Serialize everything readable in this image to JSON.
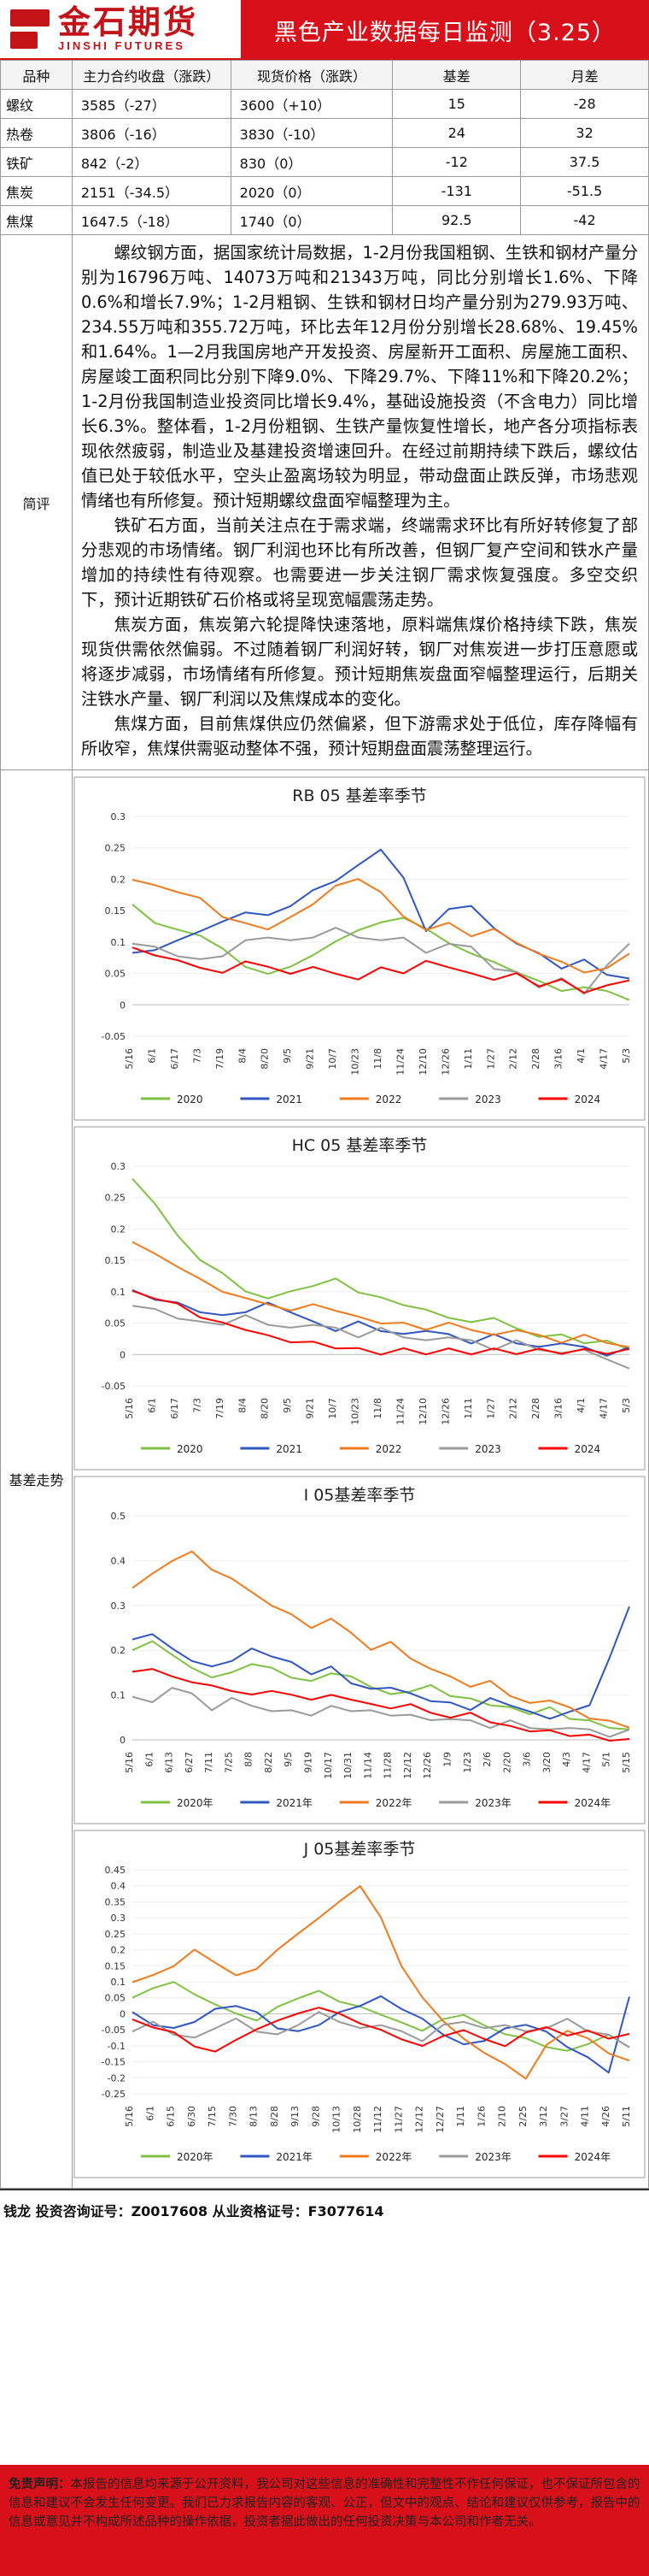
{
  "header": {
    "logo_cn": "金石期货",
    "logo_en": "JINSHI FUTURES",
    "title": "黑色产业数据每日监测（3.25）"
  },
  "price_table": {
    "headers": [
      "品种",
      "主力合约收盘（涨跌）",
      "现货价格（涨跌）",
      "基差",
      "月差"
    ],
    "rows": [
      {
        "name": "螺纹",
        "close": "3585（-27）",
        "spot": "3600（+10）",
        "basis": "15",
        "spread": "-28"
      },
      {
        "name": "热卷",
        "close": "3806（-16）",
        "spot": "3830（-10）",
        "basis": "24",
        "spread": "32"
      },
      {
        "name": "铁矿",
        "close": "842（-2）",
        "spot": "830（0）",
        "basis": "-12",
        "spread": "37.5"
      },
      {
        "name": "焦炭",
        "close": "2151（-34.5）",
        "spot": "2020（0）",
        "basis": "-131",
        "spread": "-51.5"
      },
      {
        "name": "焦煤",
        "close": "1647.5（-18）",
        "spot": "1740（0）",
        "basis": "92.5",
        "spread": "-42"
      }
    ]
  },
  "commentary": {
    "label": "简评",
    "paragraphs": [
      "螺纹钢方面，据国家统计局数据，1-2月份我国粗钢、生铁和钢材产量分别为16796万吨、14073万吨和21343万吨，同比分别增长1.6%、下降0.6%和增长7.9%；1-2月粗钢、生铁和钢材日均产量分别为279.93万吨、234.55万吨和355.72万吨，环比去年12月份分别增长28.68%、19.45%和1.64%。1—2月我国房地产开发投资、房屋新开工面积、房屋施工面积、房屋竣工面积同比分别下降9.0%、下降29.7%、下降11%和下降20.2%；1-2月份我国制造业投资同比增长9.4%，基础设施投资（不含电力）同比增长6.3%。整体看，1-2月份粗钢、生铁产量恢复性增长，地产各分项指标表现依然疲弱，制造业及基建投资增速回升。在经过前期持续下跌后，螺纹估值已处于较低水平，空头止盈离场较为明显，带动盘面止跌反弹，市场悲观情绪也有所修复。预计短期螺纹盘面窄幅整理为主。",
      "铁矿石方面，当前关注点在于需求端，终端需求环比有所好转修复了部分悲观的市场情绪。钢厂利润也环比有所改善，但钢厂复产空间和铁水产量增加的持续性有待观察。也需要进一步关注钢厂需求恢复强度。多空交织下，预计近期铁矿石价格或将呈现宽幅震荡走势。",
      "焦炭方面，焦炭第六轮提降快速落地，原料端焦煤价格持续下跌，焦炭现货供需依然偏弱。不过随着钢厂利润好转，钢厂对焦炭进一步打压意愿或将逐步减弱，市场情绪有所修复。预计短期焦炭盘面窄幅整理运行，后期关注铁水产量、钢厂利润以及焦煤成本的变化。",
      "焦煤方面，目前焦煤供应仍然偏紧，但下游需求处于低位，库存降幅有所收窄，焦煤供需驱动整体不强，预计短期盘面震荡整理运行。"
    ]
  },
  "basis_section_label": "基差走势",
  "legend_colors": {
    "2020": "#7fc241",
    "2021": "#2f56c2",
    "2022": "#f07a1c",
    "2023": "#9a9a9a",
    "2024": "#ff0000"
  },
  "chart_data": [
    {
      "type": "line",
      "title": "RB 05 基差率季节",
      "ylim": [
        -0.05,
        0.3
      ],
      "yticks": [
        "0.3",
        "0.25",
        "0.2",
        "0.15",
        "0.1",
        "0.05",
        "0",
        "-0.05"
      ],
      "xticks": [
        "5/16",
        "6/1",
        "6/17",
        "7/3",
        "7/19",
        "8/4",
        "8/20",
        "9/5",
        "9/21",
        "10/7",
        "10/23",
        "11/8",
        "11/24",
        "12/10",
        "12/26",
        "1/11",
        "1/27",
        "2/12",
        "2/28",
        "3/16",
        "4/1",
        "4/17",
        "5/3"
      ],
      "series": [
        {
          "name": "2020",
          "values": [
            0.16,
            0.13,
            0.12,
            0.11,
            0.09,
            0.06,
            0.05,
            0.06,
            0.08,
            0.1,
            0.12,
            0.13,
            0.14,
            0.12,
            0.1,
            0.08,
            0.07,
            0.05,
            0.04,
            0.02,
            0.03,
            0.02,
            0.01
          ]
        },
        {
          "name": "2021",
          "values": [
            0.08,
            0.09,
            0.1,
            0.12,
            0.13,
            0.15,
            0.14,
            0.16,
            0.18,
            0.2,
            0.22,
            0.25,
            0.2,
            0.12,
            0.15,
            0.16,
            0.12,
            0.1,
            0.08,
            0.06,
            0.07,
            0.05,
            0.04
          ]
        },
        {
          "name": "2022",
          "values": [
            0.2,
            0.19,
            0.18,
            0.17,
            0.14,
            0.13,
            0.12,
            0.14,
            0.16,
            0.19,
            0.2,
            0.18,
            0.14,
            0.12,
            0.13,
            0.11,
            0.12,
            0.1,
            0.08,
            0.07,
            0.05,
            0.06,
            0.08
          ]
        },
        {
          "name": "2023",
          "values": [
            0.1,
            0.09,
            0.08,
            0.07,
            0.08,
            0.1,
            0.11,
            0.1,
            0.11,
            0.12,
            0.11,
            0.1,
            0.11,
            0.08,
            0.1,
            0.09,
            0.06,
            0.05,
            0.03,
            0.04,
            0.02,
            0.06,
            0.1
          ]
        },
        {
          "name": "2024",
          "values": [
            0.09,
            0.08,
            0.07,
            0.06,
            0.05,
            0.07,
            0.06,
            0.05,
            0.06,
            0.05,
            0.04,
            0.06,
            0.05,
            0.07,
            0.06,
            0.05,
            0.04,
            0.05,
            0.03,
            0.04,
            0.02,
            0.03,
            0.04
          ]
        }
      ]
    },
    {
      "type": "line",
      "title": "HC 05 基差率季节",
      "ylim": [
        -0.05,
        0.3
      ],
      "yticks": [
        "0.3",
        "0.25",
        "0.2",
        "0.15",
        "0.1",
        "0.05",
        "0",
        "-0.05"
      ],
      "xticks": [
        "5/16",
        "6/1",
        "6/17",
        "7/3",
        "7/19",
        "8/4",
        "8/20",
        "9/5",
        "9/21",
        "10/7",
        "10/23",
        "11/8",
        "11/24",
        "12/10",
        "12/26",
        "1/11",
        "1/27",
        "2/12",
        "2/28",
        "3/16",
        "4/1",
        "4/17",
        "5/3"
      ],
      "series": [
        {
          "name": "2020",
          "values": [
            0.28,
            0.24,
            0.19,
            0.15,
            0.13,
            0.1,
            0.09,
            0.1,
            0.11,
            0.12,
            0.1,
            0.09,
            0.08,
            0.07,
            0.06,
            0.05,
            0.06,
            0.04,
            0.03,
            0.03,
            0.02,
            0.02,
            0.01
          ]
        },
        {
          "name": "2021",
          "values": [
            0.1,
            0.09,
            0.08,
            0.07,
            0.06,
            0.07,
            0.08,
            0.07,
            0.05,
            0.04,
            0.05,
            0.04,
            0.03,
            0.04,
            0.03,
            0.02,
            0.03,
            0.02,
            0.01,
            0.02,
            0.01,
            0.0,
            0.01
          ]
        },
        {
          "name": "2022",
          "values": [
            0.18,
            0.16,
            0.14,
            0.12,
            0.1,
            0.09,
            0.08,
            0.07,
            0.08,
            0.07,
            0.06,
            0.05,
            0.05,
            0.04,
            0.05,
            0.04,
            0.03,
            0.04,
            0.03,
            0.02,
            0.03,
            0.02,
            0.01
          ]
        },
        {
          "name": "2023",
          "values": [
            0.08,
            0.07,
            0.06,
            0.05,
            0.05,
            0.06,
            0.05,
            0.04,
            0.05,
            0.04,
            0.03,
            0.04,
            0.03,
            0.02,
            0.03,
            0.02,
            0.01,
            0.02,
            0.01,
            0.0,
            0.01,
            -0.01,
            -0.02
          ]
        },
        {
          "name": "2024",
          "values": [
            0.1,
            0.09,
            0.08,
            0.06,
            0.05,
            0.04,
            0.03,
            0.02,
            0.02,
            0.01,
            0.01,
            0.0,
            0.01,
            0.0,
            0.01,
            0.0,
            0.01,
            0.0,
            0.01,
            0.0,
            0.01,
            0.0,
            0.01
          ]
        }
      ]
    },
    {
      "type": "line",
      "title": "I 05基差率季节",
      "ylim": [
        0,
        0.5
      ],
      "yticks": [
        "0.5",
        "0.4",
        "0.3",
        "0.2",
        "0.1",
        "0"
      ],
      "xticks": [
        "5/16",
        "6/1",
        "6/13",
        "6/27",
        "7/11",
        "7/25",
        "8/8",
        "8/22",
        "9/5",
        "9/19",
        "10/17",
        "10/31",
        "11/14",
        "11/28",
        "12/12",
        "12/26",
        "1/9",
        "1/23",
        "2/6",
        "2/20",
        "3/6",
        "3/20",
        "4/3",
        "4/17",
        "5/1",
        "5/15"
      ],
      "series": [
        {
          "name": "2020年",
          "values": [
            0.2,
            0.22,
            0.19,
            0.16,
            0.14,
            0.15,
            0.17,
            0.16,
            0.14,
            0.13,
            0.15,
            0.14,
            0.12,
            0.1,
            0.11,
            0.12,
            0.1,
            0.09,
            0.08,
            0.07,
            0.06,
            0.07,
            0.05,
            0.04,
            0.03,
            0.02
          ]
        },
        {
          "name": "2021年",
          "values": [
            0.22,
            0.24,
            0.2,
            0.18,
            0.16,
            0.18,
            0.2,
            0.19,
            0.17,
            0.15,
            0.16,
            0.13,
            0.11,
            0.12,
            0.1,
            0.09,
            0.08,
            0.07,
            0.09,
            0.08,
            0.06,
            0.05,
            0.06,
            0.08,
            0.18,
            0.3
          ]
        },
        {
          "name": "2022年",
          "values": [
            0.34,
            0.37,
            0.4,
            0.42,
            0.38,
            0.36,
            0.33,
            0.3,
            0.28,
            0.25,
            0.27,
            0.24,
            0.2,
            0.22,
            0.18,
            0.16,
            0.14,
            0.12,
            0.13,
            0.1,
            0.08,
            0.09,
            0.07,
            0.05,
            0.04,
            0.03
          ]
        },
        {
          "name": "2023年",
          "values": [
            0.1,
            0.08,
            0.12,
            0.1,
            0.07,
            0.09,
            0.08,
            0.06,
            0.07,
            0.05,
            0.08,
            0.06,
            0.07,
            0.05,
            0.06,
            0.04,
            0.05,
            0.04,
            0.03,
            0.04,
            0.03,
            0.02,
            0.03,
            0.02,
            0.01,
            0.02
          ]
        },
        {
          "name": "2024年",
          "values": [
            0.15,
            0.16,
            0.14,
            0.13,
            0.12,
            0.11,
            0.1,
            0.11,
            0.1,
            0.09,
            0.1,
            0.09,
            0.08,
            0.07,
            0.08,
            0.06,
            0.05,
            0.06,
            0.04,
            0.03,
            0.02,
            0.02,
            0.01,
            0.01,
            0.0,
            0.0
          ]
        }
      ]
    },
    {
      "type": "line",
      "title": "J 05基差率季节",
      "ylim": [
        -0.25,
        0.45
      ],
      "yticks": [
        "0.45",
        "0.4",
        "0.35",
        "0.3",
        "0.25",
        "0.2",
        "0.15",
        "0.1",
        "0.05",
        "0",
        "-0.05",
        "-0.1",
        "-0.15",
        "-0.2",
        "-0.25"
      ],
      "xticks": [
        "5/16",
        "6/1",
        "6/15",
        "6/30",
        "7/15",
        "7/30",
        "8/13",
        "8/28",
        "9/13",
        "9/28",
        "10/13",
        "10/28",
        "11/12",
        "11/27",
        "12/12",
        "12/27",
        "1/11",
        "1/26",
        "2/10",
        "2/25",
        "3/12",
        "3/27",
        "4/11",
        "4/26",
        "5/11"
      ],
      "series": [
        {
          "name": "2020年",
          "values": [
            0.05,
            0.08,
            0.1,
            0.06,
            0.03,
            0.0,
            -0.02,
            0.02,
            0.05,
            0.07,
            0.04,
            0.02,
            0.0,
            -0.03,
            -0.05,
            -0.02,
            0.0,
            -0.04,
            -0.06,
            -0.08,
            -0.1,
            -0.12,
            -0.09,
            -0.07,
            -0.1
          ]
        },
        {
          "name": "2021年",
          "values": [
            0.0,
            -0.03,
            -0.05,
            -0.02,
            0.01,
            0.03,
            0.0,
            -0.04,
            -0.06,
            -0.03,
            0.0,
            0.03,
            0.05,
            0.02,
            -0.02,
            -0.06,
            -0.1,
            -0.08,
            -0.05,
            -0.03,
            -0.06,
            -0.1,
            -0.14,
            -0.18,
            0.05
          ]
        },
        {
          "name": "2022年",
          "values": [
            0.1,
            0.12,
            0.15,
            0.2,
            0.16,
            0.12,
            0.14,
            0.2,
            0.25,
            0.3,
            0.35,
            0.4,
            0.3,
            0.15,
            0.05,
            -0.02,
            -0.08,
            -0.12,
            -0.16,
            -0.2,
            -0.1,
            -0.05,
            -0.08,
            -0.12,
            -0.15
          ]
        },
        {
          "name": "2023年",
          "values": [
            -0.05,
            -0.03,
            -0.06,
            -0.08,
            -0.04,
            -0.02,
            -0.05,
            -0.07,
            -0.03,
            0.0,
            -0.02,
            -0.05,
            -0.03,
            -0.06,
            -0.08,
            -0.04,
            -0.02,
            -0.05,
            -0.03,
            -0.06,
            -0.04,
            -0.02,
            -0.05,
            -0.07,
            -0.1
          ]
        },
        {
          "name": "2024年",
          "values": [
            -0.02,
            -0.04,
            -0.06,
            -0.1,
            -0.12,
            -0.08,
            -0.05,
            -0.02,
            0.0,
            0.02,
            0.0,
            -0.03,
            -0.05,
            -0.08,
            -0.1,
            -0.07,
            -0.05,
            -0.08,
            -0.1,
            -0.06,
            -0.04,
            -0.07,
            -0.05,
            -0.08,
            -0.06
          ]
        }
      ]
    }
  ],
  "signature": "钱龙 投资咨询证号：Z0017608 从业资格证号：F3077614",
  "disclaimer": {
    "label": "免责声明：",
    "text": "本报告的信息均来源于公开资料，我公司对这些信息的准确性和完整性不作任何保证，也不保证所包含的信息和建议不会发生任何变更。我们已力求报告内容的客观、公正，但文中的观点、结论和建议仅供参考，报告中的信息或意见并不构成所述品种的操作依据，投资者据此做出的任何投资决策与本公司和作者无关。"
  }
}
